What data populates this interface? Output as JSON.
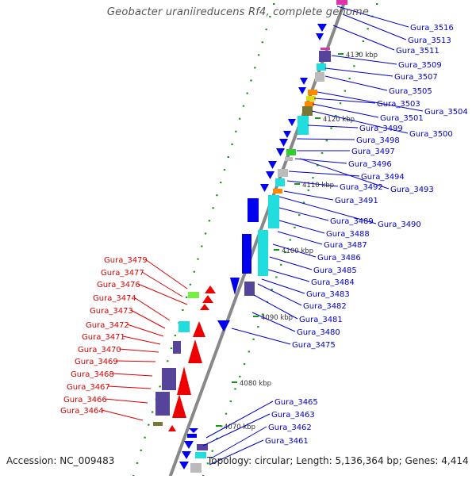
{
  "title": "Geobacter uraniireducens Rf4, complete genome",
  "accession": "Accession: NC_009483",
  "topology": "Topology: circular; Length: 5,136,364 bp; Genes: 4,414",
  "colors": {
    "backbone": "#888888",
    "forward_label": "#0000cc",
    "reverse_label": "#dd0000",
    "forward_gene": "#0000ee",
    "reverse_gene": "#ee0000",
    "tick": "#119911",
    "dark_purple": "#554499",
    "cyan": "#22dddd",
    "green": "#33cc33",
    "grey": "#bbbbbb",
    "olive": "#777733",
    "orange": "#ff8800",
    "yellow": "#dddd00",
    "magenta": "#dd33aa",
    "lime": "#77ee44"
  },
  "scale_labels": [
    "4070 kbp",
    "4080 kbp",
    "4090 kbp",
    "4100 kbp",
    "4110 kbp",
    "4120 kbp",
    "4130 kbp"
  ],
  "forward_genes": [
    "Gura_3516",
    "Gura_3513",
    "Gura_3511",
    "Gura_3509",
    "Gura_3507",
    "Gura_3505",
    "Gura_3504",
    "Gura_3503",
    "Gura_3501",
    "Gura_3500",
    "Gura_3499",
    "Gura_3498",
    "Gura_3497",
    "Gura_3496",
    "Gura_3494",
    "Gura_3492",
    "Gura_3493",
    "Gura_3491",
    "Gura_3490",
    "Gura_3489",
    "Gura_3488",
    "Gura_3487",
    "Gura_3486",
    "Gura_3485",
    "Gura_3484",
    "Gura_3483",
    "Gura_3482",
    "Gura_3481",
    "Gura_3480",
    "Gura_3475",
    "Gura_3465",
    "Gura_3463",
    "Gura_3462",
    "Gura_3461"
  ],
  "reverse_genes": [
    "Gura_3479",
    "Gura_3477",
    "Gura_3476",
    "Gura_3474",
    "Gura_3473",
    "Gura_3472",
    "Gura_3471",
    "Gura_3470",
    "Gura_3469",
    "Gura_3468",
    "Gura_3467",
    "Gura_3466",
    "Gura_3464"
  ]
}
